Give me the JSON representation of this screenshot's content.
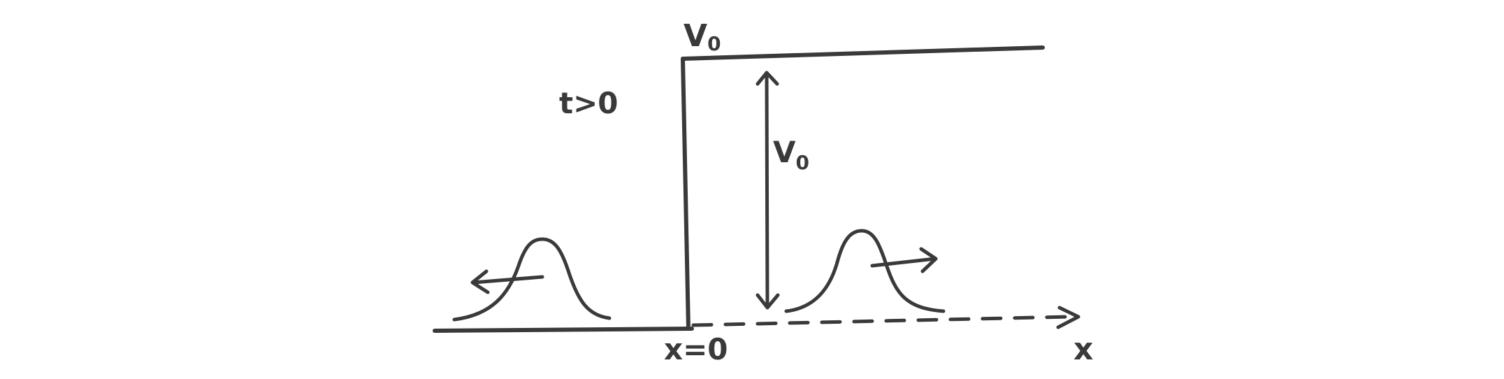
{
  "labels": {
    "potential_top": "V",
    "potential_top_sub": "0",
    "time_condition": "t>0",
    "step_height": "V",
    "step_height_sub": "0",
    "origin": "x=0",
    "x_axis": "x"
  },
  "colors": {
    "ink": "#3a3a3a",
    "background": "#ffffff"
  }
}
